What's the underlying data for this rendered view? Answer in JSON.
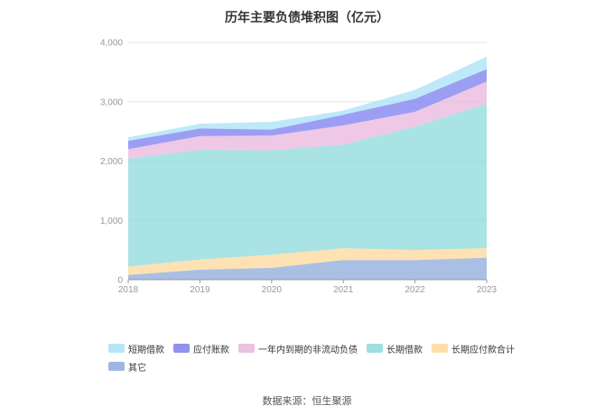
{
  "chart_data": {
    "type": "area",
    "stacked": true,
    "title": "历年主要负债堆积图（亿元）",
    "xlabel": "",
    "ylabel": "",
    "x": [
      "2018",
      "2019",
      "2020",
      "2021",
      "2022",
      "2023"
    ],
    "ylim": [
      0,
      4000
    ],
    "yticks": [
      0,
      1000,
      2000,
      3000,
      4000
    ],
    "ytick_labels": [
      "0",
      "1,000",
      "2,000",
      "3,000",
      "4,000"
    ],
    "grid": true,
    "legend_position": "bottom-left",
    "series": [
      {
        "name": "其它",
        "color": "#8eaadb",
        "values": [
          80,
          170,
          200,
          330,
          330,
          370
        ]
      },
      {
        "name": "长期应付款合计",
        "color": "#ffd899",
        "values": [
          140,
          170,
          220,
          200,
          170,
          160
        ]
      },
      {
        "name": "长期借款",
        "color": "#8dd9db",
        "values": [
          1820,
          1850,
          1760,
          1750,
          2080,
          2440
        ]
      },
      {
        "name": "一年内到期的非流动负债",
        "color": "#e9b6dc",
        "values": [
          160,
          230,
          250,
          320,
          250,
          370
        ]
      },
      {
        "name": "应付账款",
        "color": "#7b7ef0",
        "values": [
          140,
          130,
          100,
          180,
          220,
          210
        ]
      },
      {
        "name": "短期借款",
        "color": "#a8e2f7",
        "values": [
          60,
          80,
          130,
          70,
          150,
          210
        ]
      }
    ]
  },
  "legend_order": [
    "短期借款",
    "应付账款",
    "一年内到期的非流动负债",
    "长期借款",
    "长期应付款合计",
    "其它"
  ],
  "source": "数据来源：恒生聚源"
}
